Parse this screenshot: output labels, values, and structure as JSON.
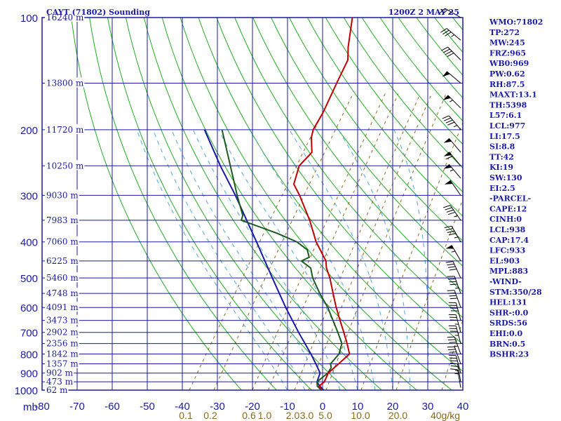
{
  "header": {
    "title": "CAYT (71802) Sounding",
    "time": "1200Z  2 MAY 25"
  },
  "indices": [
    "WMO:71802",
    "TP:272",
    "MW:245",
    "FRZ:965",
    "WB0:969",
    "PW:0.62",
    "RH:87.5",
    "MAXT:13.1",
    "TH:5398",
    "L57:6.1",
    "LCL:977",
    "LI:17.5",
    "SI:8.8",
    "TT:42",
    "KI:19",
    "SW:130",
    "EI:2.5",
    "-PARCEL-",
    "CAPE:12",
    "CINH:0",
    "LCL:938",
    "CAP:17.4",
    "LFC:933",
    "EL:903",
    "MPL:883",
    "-WIND-",
    "STM:350/28",
    "HEL:131",
    "SHR-:0.0",
    "SRDS:56",
    "EHI:0.0",
    "BRN:0.5",
    "BSHR:23"
  ],
  "colors": {
    "axis": "#1a1aa6",
    "temperature": "#c00000",
    "dewpoint": "#1e5a1e",
    "parcel": "#1a1aa6",
    "dry_adiabat": "#22aa22",
    "mixing_ratio": "#8a6a1c",
    "moist_adiabat": "#4ea8d8"
  },
  "chart_data": {
    "type": "skew-t",
    "ylabel": "mb",
    "pressure_ticks": [
      {
        "label": "100",
        "p": 100
      },
      {
        "label": "200",
        "p": 200
      },
      {
        "label": "300",
        "p": 300
      },
      {
        "label": "400",
        "p": 400
      },
      {
        "label": "500",
        "p": 500
      },
      {
        "label": "600",
        "p": 600
      },
      {
        "label": "700",
        "p": 700
      },
      {
        "label": "800",
        "p": 800
      },
      {
        "label": "900",
        "p": 900
      },
      {
        "label": "1000",
        "p": 1000
      }
    ],
    "temperature_ticks": [
      {
        "label": "-80",
        "t": -80
      },
      {
        "label": "-70",
        "t": -70
      },
      {
        "label": "-60",
        "t": -60
      },
      {
        "label": "-50",
        "t": -50
      },
      {
        "label": "-40",
        "t": -40
      },
      {
        "label": "-30",
        "t": -30
      },
      {
        "label": "-20",
        "t": -20
      },
      {
        "label": "-10",
        "t": -10
      },
      {
        "label": "0",
        "t": 0
      },
      {
        "label": "10",
        "t": 10
      },
      {
        "label": "20",
        "t": 20
      },
      {
        "label": "30",
        "t": 30
      },
      {
        "label": "40",
        "t": 40
      }
    ],
    "height_labels": [
      {
        "label": "16240 m",
        "p": 100
      },
      {
        "label": "13800 m",
        "p": 150
      },
      {
        "label": "11720 m",
        "p": 200
      },
      {
        "label": "10250 m",
        "p": 250
      },
      {
        "label": "9030 m",
        "p": 300
      },
      {
        "label": "7983 m",
        "p": 350
      },
      {
        "label": "7060 m",
        "p": 400
      },
      {
        "label": "6225 m",
        "p": 450
      },
      {
        "label": "5460 m",
        "p": 500
      },
      {
        "label": "4748 m",
        "p": 550
      },
      {
        "label": "4091 m",
        "p": 600
      },
      {
        "label": "3473 m",
        "p": 650
      },
      {
        "label": "2902 m",
        "p": 700
      },
      {
        "label": "2356 m",
        "p": 750
      },
      {
        "label": "1842 m",
        "p": 800
      },
      {
        "label": "1357 m",
        "p": 850
      },
      {
        "label": "902 m",
        "p": 900
      },
      {
        "label": "473 m",
        "p": 950
      },
      {
        "label": "62 m",
        "p": 1000
      }
    ],
    "mixing_ratio_labels": [
      {
        "label": "0.1",
        "t": -39
      },
      {
        "label": "0.2",
        "t": -32
      },
      {
        "label": "0.6",
        "t": -21
      },
      {
        "label": "1.0",
        "t": -16.5
      },
      {
        "label": "2.0",
        "t": -8.5
      },
      {
        "label": "3.0",
        "t": -4.5
      },
      {
        "label": "5.0",
        "t": 0.8
      },
      {
        "label": "10.0",
        "t": 10.8
      },
      {
        "label": "20.0",
        "t": 21.5
      },
      {
        "label": "40g/kg",
        "t": 35
      }
    ],
    "mixing_ratio_lines": [
      -38,
      -31,
      -20,
      -15.5,
      -8,
      -4,
      1,
      11,
      21,
      34
    ],
    "dry_adiabat_thetas": [
      250,
      260,
      270,
      280,
      290,
      300,
      310,
      320,
      330,
      340,
      350,
      360,
      370,
      380,
      390,
      400,
      410,
      420,
      430,
      440,
      450,
      460,
      470,
      480,
      490,
      500,
      510
    ],
    "moist_adiabat_t1000": [
      -10,
      -5,
      0,
      5,
      10,
      15,
      20,
      25,
      30
    ],
    "temperature_profile": [
      {
        "p": 1000,
        "t": -0.1
      },
      {
        "p": 975,
        "t": -1.8
      },
      {
        "p": 950,
        "t": -1.1
      },
      {
        "p": 900,
        "t": -1.7
      },
      {
        "p": 850,
        "t": -0.5
      },
      {
        "p": 800,
        "t": 0.7
      },
      {
        "p": 750,
        "t": -2.0
      },
      {
        "p": 700,
        "t": -5.1
      },
      {
        "p": 650,
        "t": -8.5
      },
      {
        "p": 600,
        "t": -12.1
      },
      {
        "p": 550,
        "t": -15.7
      },
      {
        "p": 500,
        "t": -19.6
      },
      {
        "p": 470,
        "t": -22.5
      },
      {
        "p": 450,
        "t": -24.0
      },
      {
        "p": 400,
        "t": -30.5
      },
      {
        "p": 350,
        "t": -36.5
      },
      {
        "p": 300,
        "t": -44.2
      },
      {
        "p": 280,
        "t": -48.0
      },
      {
        "p": 250,
        "t": -50.0
      },
      {
        "p": 230,
        "t": -49.0
      },
      {
        "p": 210,
        "t": -52.0
      },
      {
        "p": 200,
        "t": -53.0
      },
      {
        "p": 180,
        "t": -53.5
      },
      {
        "p": 150,
        "t": -55.3
      },
      {
        "p": 130,
        "t": -56.6
      },
      {
        "p": 120,
        "t": -59.0
      },
      {
        "p": 100,
        "t": -63.5
      }
    ],
    "dewpoint_profile": [
      {
        "p": 1000,
        "t": -0.4
      },
      {
        "p": 975,
        "t": -2.3
      },
      {
        "p": 950,
        "t": -3.2
      },
      {
        "p": 900,
        "t": -1.8
      },
      {
        "p": 870,
        "t": -1.9
      },
      {
        "p": 850,
        "t": -2.8
      },
      {
        "p": 800,
        "t": -2.3
      },
      {
        "p": 750,
        "t": -3.5
      },
      {
        "p": 700,
        "t": -6.8
      },
      {
        "p": 650,
        "t": -10.5
      },
      {
        "p": 600,
        "t": -14.5
      },
      {
        "p": 550,
        "t": -19.5
      },
      {
        "p": 500,
        "t": -24.5
      },
      {
        "p": 470,
        "t": -27.0
      },
      {
        "p": 450,
        "t": -31.0
      },
      {
        "p": 440,
        "t": -29.5
      },
      {
        "p": 420,
        "t": -31.5
      },
      {
        "p": 400,
        "t": -36.0
      },
      {
        "p": 380,
        "t": -43.0
      },
      {
        "p": 350,
        "t": -56.0
      },
      {
        "p": 340,
        "t": -56.5
      },
      {
        "p": 300,
        "t": -62.0
      },
      {
        "p": 200,
        "t": -79.0
      }
    ],
    "parcel_profile": [
      {
        "p": 1000,
        "t": 0.3
      },
      {
        "p": 975,
        "t": -1.6
      },
      {
        "p": 950,
        "t": -3.2
      },
      {
        "p": 900,
        "t": -4.0
      },
      {
        "p": 850,
        "t": -7.0
      },
      {
        "p": 800,
        "t": -10.3
      },
      {
        "p": 700,
        "t": -18.0
      },
      {
        "p": 600,
        "t": -26.5
      },
      {
        "p": 500,
        "t": -36.0
      },
      {
        "p": 400,
        "t": -47.5
      },
      {
        "p": 300,
        "t": -62.5
      },
      {
        "p": 250,
        "t": -72.5
      },
      {
        "p": 200,
        "t": -84.0
      }
    ],
    "wind_barbs": [
      {
        "p": 985,
        "dir": 350,
        "speed": 15
      },
      {
        "p": 950,
        "dir": 350,
        "speed": 25
      },
      {
        "p": 900,
        "dir": 345,
        "speed": 30
      },
      {
        "p": 850,
        "dir": 340,
        "speed": 30
      },
      {
        "p": 800,
        "dir": 340,
        "speed": 35
      },
      {
        "p": 750,
        "dir": 345,
        "speed": 35
      },
      {
        "p": 700,
        "dir": 345,
        "speed": 35
      },
      {
        "p": 650,
        "dir": 345,
        "speed": 40
      },
      {
        "p": 600,
        "dir": 340,
        "speed": 40
      },
      {
        "p": 550,
        "dir": 340,
        "speed": 45
      },
      {
        "p": 500,
        "dir": 335,
        "speed": 40
      },
      {
        "p": 450,
        "dir": 330,
        "speed": 55
      },
      {
        "p": 400,
        "dir": 330,
        "speed": 45
      },
      {
        "p": 350,
        "dir": 325,
        "speed": 45
      },
      {
        "p": 300,
        "dir": 325,
        "speed": 50
      },
      {
        "p": 270,
        "dir": 320,
        "speed": 55
      },
      {
        "p": 250,
        "dir": 320,
        "speed": 60
      },
      {
        "p": 230,
        "dir": 320,
        "speed": 50
      },
      {
        "p": 200,
        "dir": 320,
        "speed": 45
      },
      {
        "p": 175,
        "dir": 315,
        "speed": 55
      },
      {
        "p": 150,
        "dir": 310,
        "speed": 50
      },
      {
        "p": 130,
        "dir": 315,
        "speed": 40
      },
      {
        "p": 115,
        "dir": 310,
        "speed": 35
      },
      {
        "p": 100,
        "dir": 300,
        "speed": 25
      }
    ]
  }
}
